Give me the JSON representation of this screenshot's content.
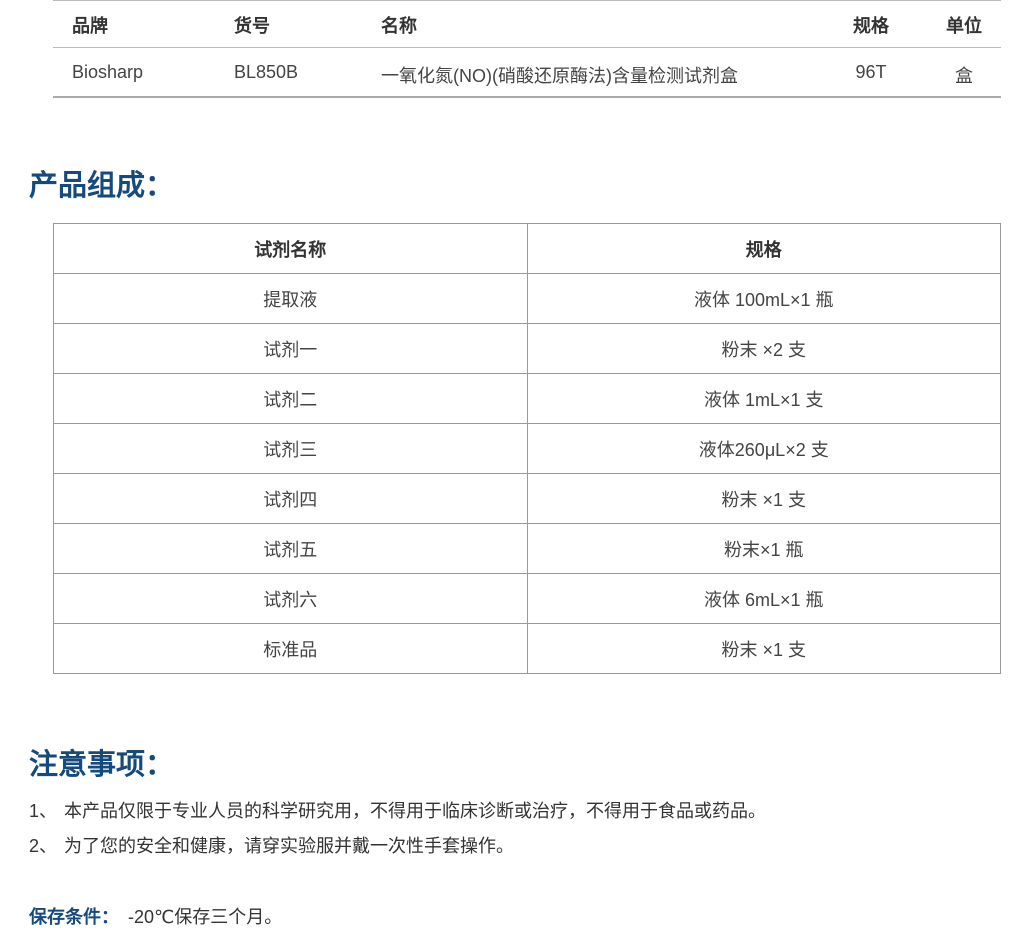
{
  "product_table": {
    "headers": [
      "品牌",
      "货号",
      "名称",
      "规格",
      "单位"
    ],
    "rows": [
      [
        "Biosharp",
        "BL850B",
        "一氧化氮(NO)(硝酸还原酶法)含量检测试剂盒",
        "96T",
        "盒"
      ]
    ]
  },
  "composition": {
    "title": "产品组成：",
    "headers": [
      "试剂名称",
      "规格"
    ],
    "rows": [
      [
        "提取液",
        "液体 100mL×1 瓶"
      ],
      [
        "试剂一",
        "粉末 ×2 支"
      ],
      [
        "试剂二",
        "液体 1mL×1 支"
      ],
      [
        "试剂三",
        "液体260μL×2 支"
      ],
      [
        "试剂四",
        "粉末 ×1 支"
      ],
      [
        "试剂五",
        "粉末×1 瓶"
      ],
      [
        "试剂六",
        "液体 6mL×1 瓶"
      ],
      [
        "标准品",
        "粉末 ×1 支"
      ]
    ]
  },
  "notes": {
    "title": "注意事项：",
    "items": [
      {
        "number": "1、",
        "text": "本产品仅限于专业人员的科学研究用，不得用于临床诊断或治疗，不得用于食品或药品。"
      },
      {
        "number": "2、",
        "text": "为了您的安全和健康，请穿实验服并戴一次性手套操作。"
      }
    ]
  },
  "storage": {
    "label": "保存条件：",
    "text": "-20℃保存三个月。"
  }
}
